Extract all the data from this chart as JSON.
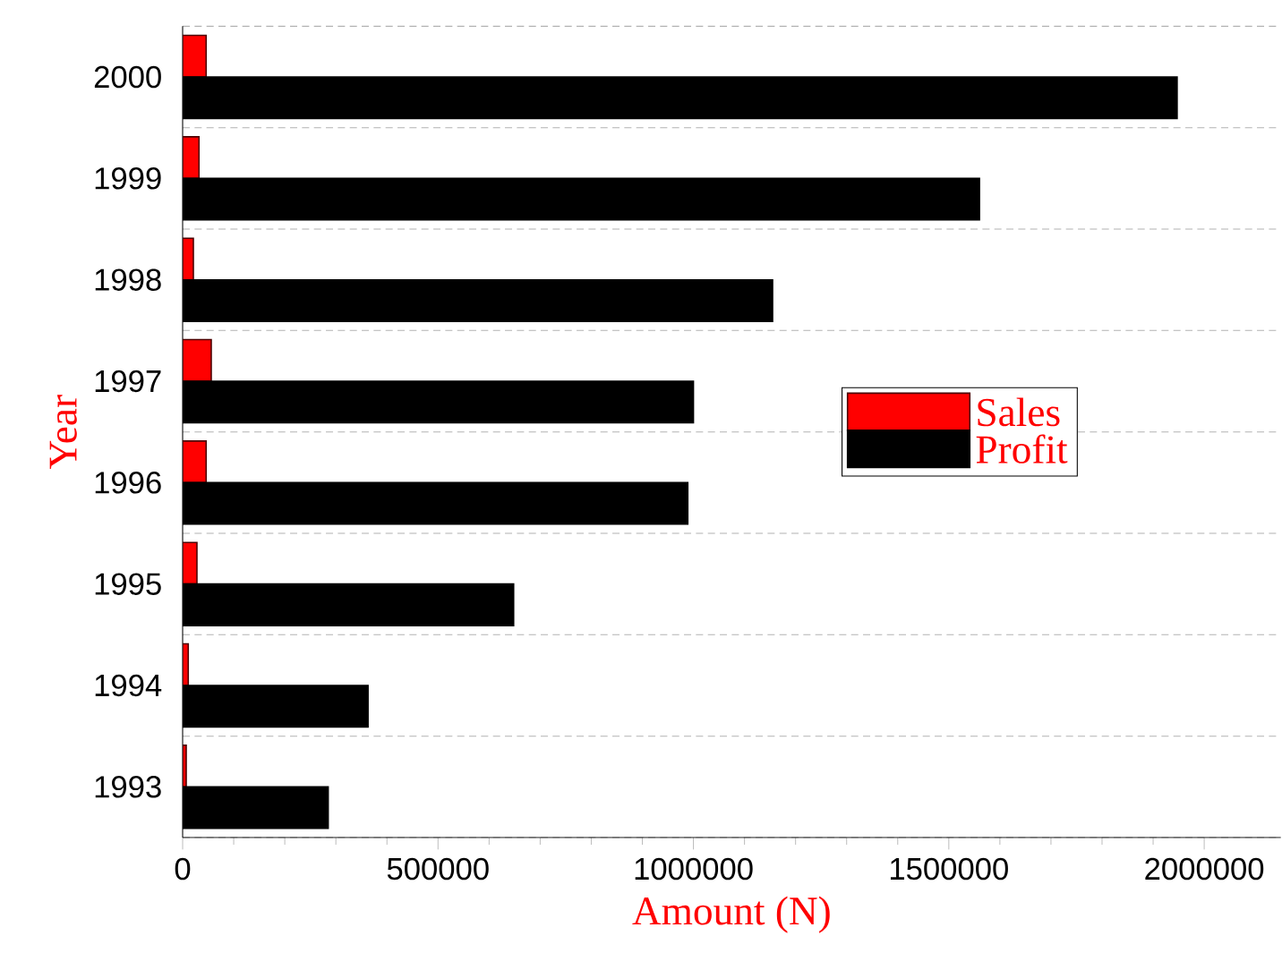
{
  "chart_data": {
    "type": "bar",
    "orientation": "horizontal",
    "xlabel": "Amount (N)",
    "ylabel": "Year",
    "categories": [
      "2000",
      "1999",
      "1998",
      "1997",
      "1996",
      "1995",
      "1994",
      "1993"
    ],
    "series": [
      {
        "name": "Sales",
        "color": "#ff0000",
        "values": [
          46000,
          32000,
          21000,
          56000,
          46000,
          28000,
          11000,
          7000
        ]
      },
      {
        "name": "Profit",
        "color": "#000000",
        "values": [
          1947000,
          1560000,
          1155000,
          1000000,
          989000,
          648000,
          363000,
          285000
        ]
      }
    ],
    "xlim": [
      0,
      2150000
    ],
    "xticks": [
      0,
      500000,
      1000000,
      1500000,
      2000000
    ],
    "grid": "y",
    "legend": "right"
  }
}
